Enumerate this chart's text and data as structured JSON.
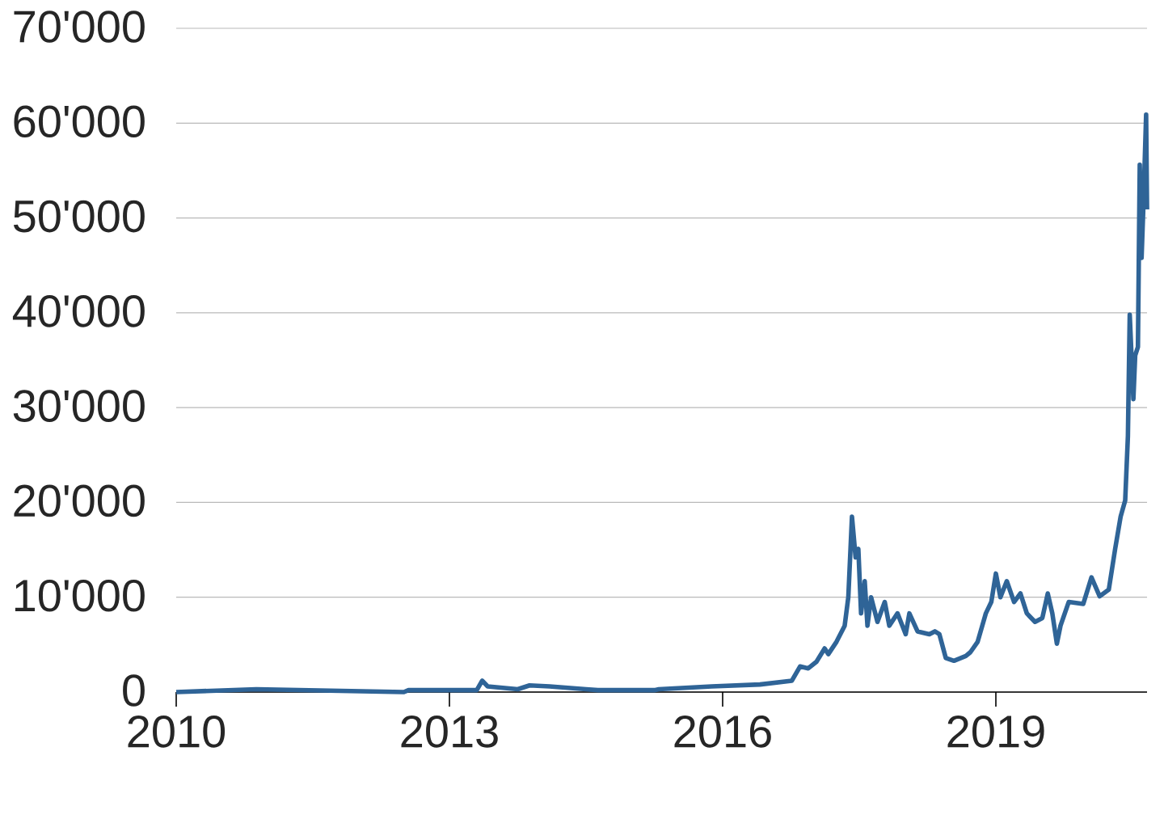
{
  "chart_data": {
    "type": "line",
    "x": [
      2010,
      2010.88,
      2012.5,
      2012.55,
      2013.3,
      2013.36,
      2013.42,
      2013.75,
      2013.88,
      2014.1,
      2014.5,
      2014.63,
      2015.25,
      2015.3,
      2015.88,
      2016.41,
      2016.76,
      2016.85,
      2016.94,
      2017.03,
      2017.12,
      2017.16,
      2017.25,
      2017.34,
      2017.38,
      2017.42,
      2017.46,
      2017.49,
      2017.52,
      2017.56,
      2017.59,
      2017.63,
      2017.7,
      2017.78,
      2017.83,
      2017.92,
      2018.01,
      2018.05,
      2018.14,
      2018.27,
      2018.33,
      2018.38,
      2018.45,
      2018.54,
      2018.67,
      2018.72,
      2018.8,
      2018.89,
      2018.95,
      2019,
      2019.05,
      2019.12,
      2019.2,
      2019.27,
      2019.34,
      2019.43,
      2019.51,
      2019.57,
      2019.62,
      2019.67,
      2019.71,
      2019.8,
      2019.96,
      2020.05,
      2020.14,
      2020.24,
      2020.31,
      2020.37,
      2020.42,
      2020.45,
      2020.47,
      2020.51,
      2020.53,
      2020.56,
      2020.58,
      2020.6,
      2020.62,
      2020.65,
      2020.66
    ],
    "values": [
      0,
      300,
      0,
      200,
      200,
      1200,
      600,
      300,
      700,
      600,
      300,
      200,
      200,
      300,
      600,
      800,
      1200,
      2700,
      2500,
      3200,
      4600,
      4000,
      5300,
      7000,
      10000,
      18500,
      14200,
      15100,
      8300,
      11700,
      7000,
      10000,
      7400,
      9500,
      7000,
      8300,
      6100,
      8300,
      6400,
      6100,
      6400,
      6100,
      3600,
      3300,
      3800,
      4200,
      5300,
      8300,
      9500,
      12500,
      10000,
      11700,
      9500,
      10400,
      8300,
      7400,
      7800,
      10400,
      8300,
      5100,
      7000,
      9500,
      9300,
      12100,
      10100,
      10800,
      15100,
      18500,
      20200,
      27000,
      39800,
      30900,
      35500,
      36400,
      55600,
      45800,
      51300,
      60900,
      50900
    ],
    "color": "#2f6497",
    "xlim": [
      2010,
      2020.66
    ],
    "ylim": [
      0,
      70000
    ],
    "xticks": [
      2010,
      2013,
      2016,
      2019
    ],
    "yticks": [
      0,
      {
        "value": 10000,
        "label": "10'000"
      },
      {
        "value": 20000,
        "label": "20'000"
      },
      {
        "value": 30000,
        "label": "30'000"
      },
      {
        "value": 40000,
        "label": "40'000"
      },
      {
        "value": 50000,
        "label": "50'000"
      },
      {
        "value": 60000,
        "label": "60'000"
      },
      {
        "value": 70000,
        "label": "70'000"
      }
    ],
    "grid": "y",
    "marker": "none",
    "line_style": "solid"
  }
}
